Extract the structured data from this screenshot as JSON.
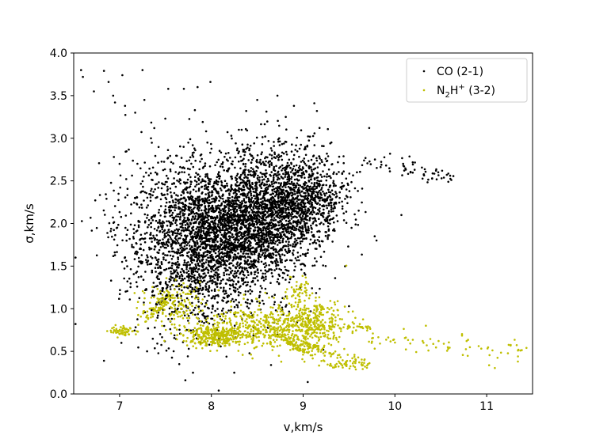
{
  "chart_data": {
    "type": "scatter",
    "title": "",
    "xlabel": "v,km/s",
    "ylabel": "σ,km/s",
    "xlim": [
      6.5,
      11.5
    ],
    "ylim": [
      0.0,
      4.0
    ],
    "xticks": [
      7,
      8,
      9,
      10,
      11
    ],
    "yticks": [
      0.0,
      0.5,
      1.0,
      1.5,
      2.0,
      2.5,
      3.0,
      3.5,
      4.0
    ],
    "grid": false,
    "legend_position": "top-right",
    "series": [
      {
        "name": "CO (2-1)",
        "legend_label": {
          "main": "CO (2-1)"
        },
        "color": "#000000",
        "clusters": [
          {
            "cx": 7.9,
            "cy": 1.85,
            "sx": 0.32,
            "sy": 0.42,
            "n": 1600
          },
          {
            "cx": 8.5,
            "cy": 2.05,
            "sx": 0.3,
            "sy": 0.32,
            "n": 1500
          },
          {
            "cx": 9.0,
            "cy": 2.3,
            "sx": 0.25,
            "sy": 0.22,
            "n": 800
          },
          {
            "cx": 8.3,
            "cy": 1.6,
            "sx": 0.4,
            "sy": 0.35,
            "n": 500
          },
          {
            "cx": 7.4,
            "cy": 2.0,
            "sx": 0.3,
            "sy": 0.45,
            "n": 300
          },
          {
            "cx": 8.7,
            "cy": 2.75,
            "sx": 0.35,
            "sy": 0.2,
            "n": 180
          },
          {
            "cx": 7.7,
            "cy": 1.1,
            "sx": 0.3,
            "sy": 0.3,
            "n": 160
          }
        ],
        "tail": {
          "x_start": 9.6,
          "x_end": 10.65,
          "y_start": 2.75,
          "y_end": 2.55,
          "spread": 0.06,
          "n": 60
        },
        "outliers": [
          [
            6.58,
            3.8
          ],
          [
            6.6,
            3.72
          ],
          [
            6.72,
            3.55
          ],
          [
            6.83,
            3.79
          ],
          [
            6.88,
            3.66
          ],
          [
            6.93,
            3.5
          ],
          [
            6.95,
            3.42
          ],
          [
            7.03,
            3.74
          ],
          [
            7.06,
            3.38
          ],
          [
            7.25,
            3.8
          ],
          [
            7.17,
            3.3
          ],
          [
            7.27,
            3.45
          ],
          [
            7.53,
            3.58
          ],
          [
            7.7,
            3.58
          ],
          [
            7.85,
            3.6
          ],
          [
            7.99,
            3.66
          ],
          [
            7.82,
            3.33
          ],
          [
            8.38,
            3.32
          ],
          [
            8.5,
            3.45
          ],
          [
            8.72,
            3.5
          ],
          [
            8.9,
            3.38
          ],
          [
            9.15,
            3.32
          ],
          [
            9.72,
            3.12
          ],
          [
            6.52,
            1.6
          ],
          [
            6.52,
            0.82
          ],
          [
            6.83,
            0.39
          ],
          [
            7.0,
            2.7
          ],
          [
            8.08,
            0.04
          ],
          [
            9.05,
            0.14
          ],
          [
            9.5,
            1.03
          ],
          [
            9.22,
            0.52
          ],
          [
            8.65,
            0.34
          ],
          [
            8.25,
            0.25
          ],
          [
            7.65,
            0.35
          ],
          [
            7.3,
            0.5
          ],
          [
            9.8,
            1.8
          ],
          [
            9.78,
            1.85
          ],
          [
            7.8,
            0.25
          ],
          [
            7.02,
            0.6
          ]
        ]
      },
      {
        "name": "N₂H⁺ (3-2)",
        "legend_label": {
          "main": "N",
          "sub": "2",
          "main2": "H",
          "sup": "+",
          "tail": " (3-2)"
        },
        "color": "#bfbf00",
        "clusters": [
          {
            "cx": 8.05,
            "cy": 0.68,
            "sx": 0.18,
            "sy": 0.06,
            "n": 320
          },
          {
            "cx": 8.55,
            "cy": 0.8,
            "sx": 0.3,
            "sy": 0.14,
            "n": 380
          },
          {
            "cx": 9.05,
            "cy": 0.82,
            "sx": 0.22,
            "sy": 0.16,
            "n": 320
          },
          {
            "cx": 7.55,
            "cy": 1.05,
            "sx": 0.16,
            "sy": 0.12,
            "n": 150
          },
          {
            "cx": 7.05,
            "cy": 0.74,
            "sx": 0.08,
            "sy": 0.03,
            "n": 60
          },
          {
            "cx": 8.95,
            "cy": 1.25,
            "sx": 0.06,
            "sy": 0.08,
            "n": 40
          },
          {
            "cx": 9.5,
            "cy": 0.36,
            "sx": 0.12,
            "sy": 0.04,
            "n": 60
          }
        ],
        "streaks": [
          {
            "x0": 8.7,
            "y0": 0.7,
            "x1": 9.1,
            "y1": 0.45,
            "n": 80
          },
          {
            "x0": 9.0,
            "y0": 0.6,
            "x1": 9.35,
            "y1": 0.45,
            "n": 50
          },
          {
            "x0": 9.0,
            "y0": 0.78,
            "x1": 9.72,
            "y1": 0.78,
            "n": 60
          },
          {
            "x0": 7.25,
            "y0": 0.85,
            "x1": 7.6,
            "y1": 1.15,
            "n": 40
          }
        ],
        "tail": {
          "x_start": 9.7,
          "x_end": 11.45,
          "y_start": 0.65,
          "y_end": 0.45,
          "spread": 0.08,
          "n": 70
        }
      }
    ]
  }
}
